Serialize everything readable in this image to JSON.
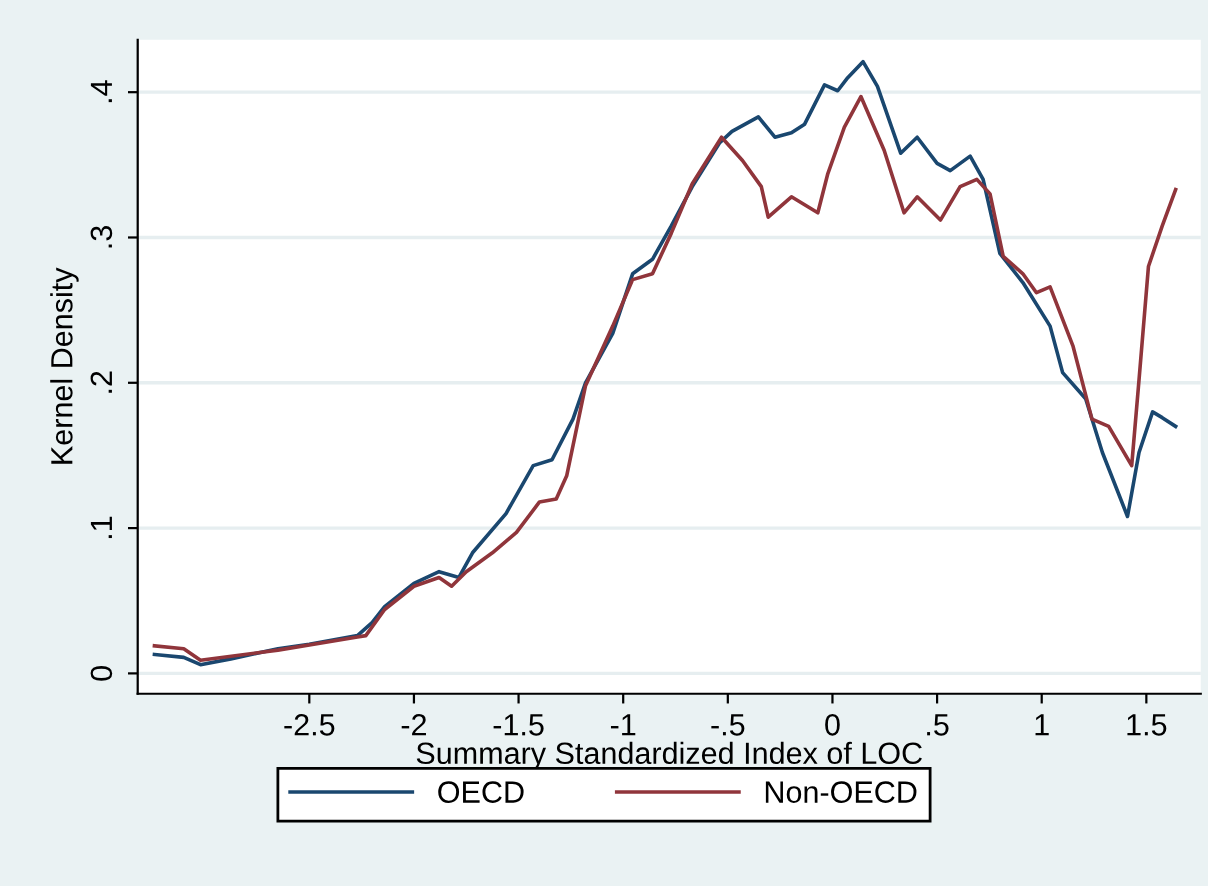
{
  "chart_data": {
    "type": "line",
    "xlabel": "Summary Standardized Index of LOC",
    "ylabel": "Kernel Density",
    "xlim": [
      -3.32,
      1.76
    ],
    "ylim": [
      -0.014,
      0.436
    ],
    "xticks": [
      {
        "value": -2.5,
        "label": "-2.5"
      },
      {
        "value": -2,
        "label": "-2"
      },
      {
        "value": -1.5,
        "label": "-1.5"
      },
      {
        "value": -1,
        "label": "-1"
      },
      {
        "value": -0.5,
        "label": "-.5"
      },
      {
        "value": 0,
        "label": "0"
      },
      {
        "value": 0.5,
        "label": ".5"
      },
      {
        "value": 1,
        "label": "1"
      },
      {
        "value": 1.5,
        "label": "1.5"
      }
    ],
    "yticks": [
      {
        "value": 0,
        "label": "0"
      },
      {
        "value": 0.1,
        "label": ".1"
      },
      {
        "value": 0.2,
        "label": ".2"
      },
      {
        "value": 0.3,
        "label": ".3"
      },
      {
        "value": 0.4,
        "label": ".4"
      }
    ],
    "grid": "y",
    "legend": "bottom",
    "series": [
      {
        "name": "OECD",
        "color": "#1a476f",
        "x": [
          -3.24,
          -3.1,
          -3.02,
          -2.875,
          -2.65,
          -2.5,
          -2.27,
          -2.2,
          -2.14,
          -2.0,
          -1.88,
          -1.785,
          -1.72,
          -1.56,
          -1.43,
          -1.34,
          -1.24,
          -1.18,
          -1.05,
          -0.955,
          -0.86,
          -0.77,
          -0.67,
          -0.54,
          -0.48,
          -0.354,
          -0.275,
          -0.196,
          -0.133,
          -0.038,
          0.025,
          0.073,
          0.146,
          0.215,
          0.326,
          0.405,
          0.5,
          0.563,
          0.658,
          0.72,
          0.8,
          0.91,
          1.04,
          1.1,
          1.21,
          1.29,
          1.41,
          1.465,
          1.53,
          1.576,
          1.64
        ],
        "values": [
          0.013,
          0.011,
          0.006,
          0.01,
          0.017,
          0.02,
          0.026,
          0.035,
          0.046,
          0.062,
          0.07,
          0.066,
          0.083,
          0.11,
          0.143,
          0.147,
          0.175,
          0.2,
          0.234,
          0.275,
          0.285,
          0.308,
          0.335,
          0.365,
          0.373,
          0.383,
          0.369,
          0.372,
          0.378,
          0.405,
          0.401,
          0.41,
          0.421,
          0.404,
          0.358,
          0.369,
          0.351,
          0.346,
          0.356,
          0.34,
          0.289,
          0.269,
          0.239,
          0.207,
          0.189,
          0.152,
          0.108,
          0.152,
          0.18,
          0.176,
          0.17
        ]
      },
      {
        "name": "Non-OECD",
        "color": "#90353b",
        "x": [
          -3.24,
          -3.1,
          -3.02,
          -2.65,
          -2.27,
          -2.23,
          -2.14,
          -2.0,
          -1.88,
          -1.82,
          -1.75,
          -1.625,
          -1.51,
          -1.4,
          -1.32,
          -1.27,
          -1.18,
          -1.05,
          -0.955,
          -0.86,
          -0.77,
          -0.67,
          -0.53,
          -0.43,
          -0.34,
          -0.307,
          -0.196,
          -0.07,
          -0.022,
          0.057,
          0.136,
          0.247,
          0.342,
          0.405,
          0.516,
          0.61,
          0.69,
          0.753,
          0.816,
          0.91,
          0.975,
          1.04,
          1.15,
          1.24,
          1.32,
          1.43,
          1.465,
          1.51,
          1.576,
          1.64
        ],
        "values": [
          0.019,
          0.017,
          0.009,
          0.016,
          0.025,
          0.026,
          0.044,
          0.06,
          0.066,
          0.06,
          0.07,
          0.083,
          0.097,
          0.118,
          0.12,
          0.136,
          0.198,
          0.239,
          0.271,
          0.275,
          0.303,
          0.337,
          0.369,
          0.353,
          0.335,
          0.314,
          0.328,
          0.317,
          0.344,
          0.376,
          0.397,
          0.36,
          0.317,
          0.328,
          0.312,
          0.335,
          0.34,
          0.33,
          0.287,
          0.275,
          0.262,
          0.266,
          0.225,
          0.175,
          0.17,
          0.143,
          0.202,
          0.28,
          0.308,
          0.333
        ]
      }
    ]
  }
}
